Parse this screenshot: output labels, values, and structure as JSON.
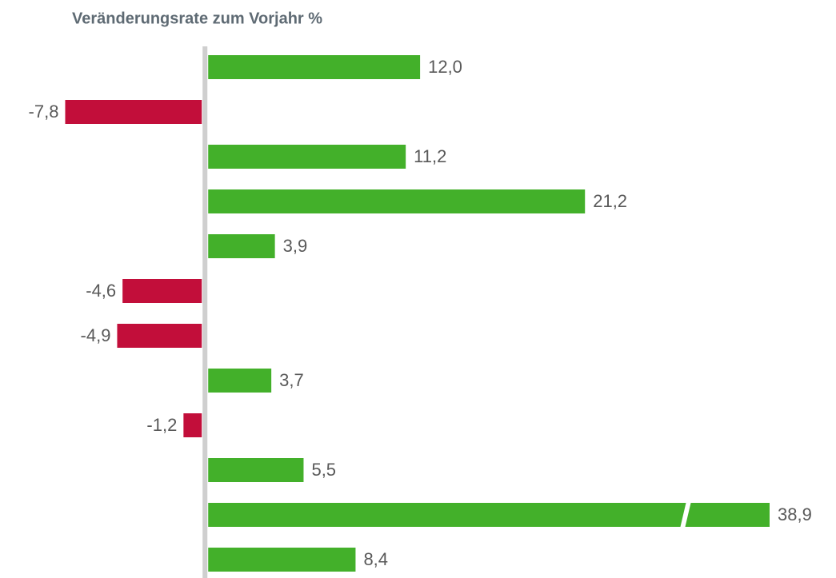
{
  "chart_data": {
    "type": "barh",
    "title": "Veränderungsrate zum Vorjahr %",
    "categories": [
      null,
      null,
      null,
      null,
      null,
      null,
      null,
      null,
      null,
      null,
      null,
      null
    ],
    "values": [
      12.0,
      -7.8,
      11.2,
      21.2,
      3.9,
      -4.6,
      -4.9,
      3.7,
      -1.2,
      5.5,
      38.9,
      8.4
    ],
    "value_labels": [
      "12,0",
      "-7,8",
      "11,2",
      "21,2",
      "3,9",
      "-4,6",
      "-4,9",
      "3,7",
      "-1,2",
      "5,5",
      "38,9",
      "8,4"
    ],
    "positive_color": "#43b02a",
    "negative_color": "#c20e3a",
    "xlim": [
      -8,
      31.5
    ],
    "axis_break": true
  }
}
